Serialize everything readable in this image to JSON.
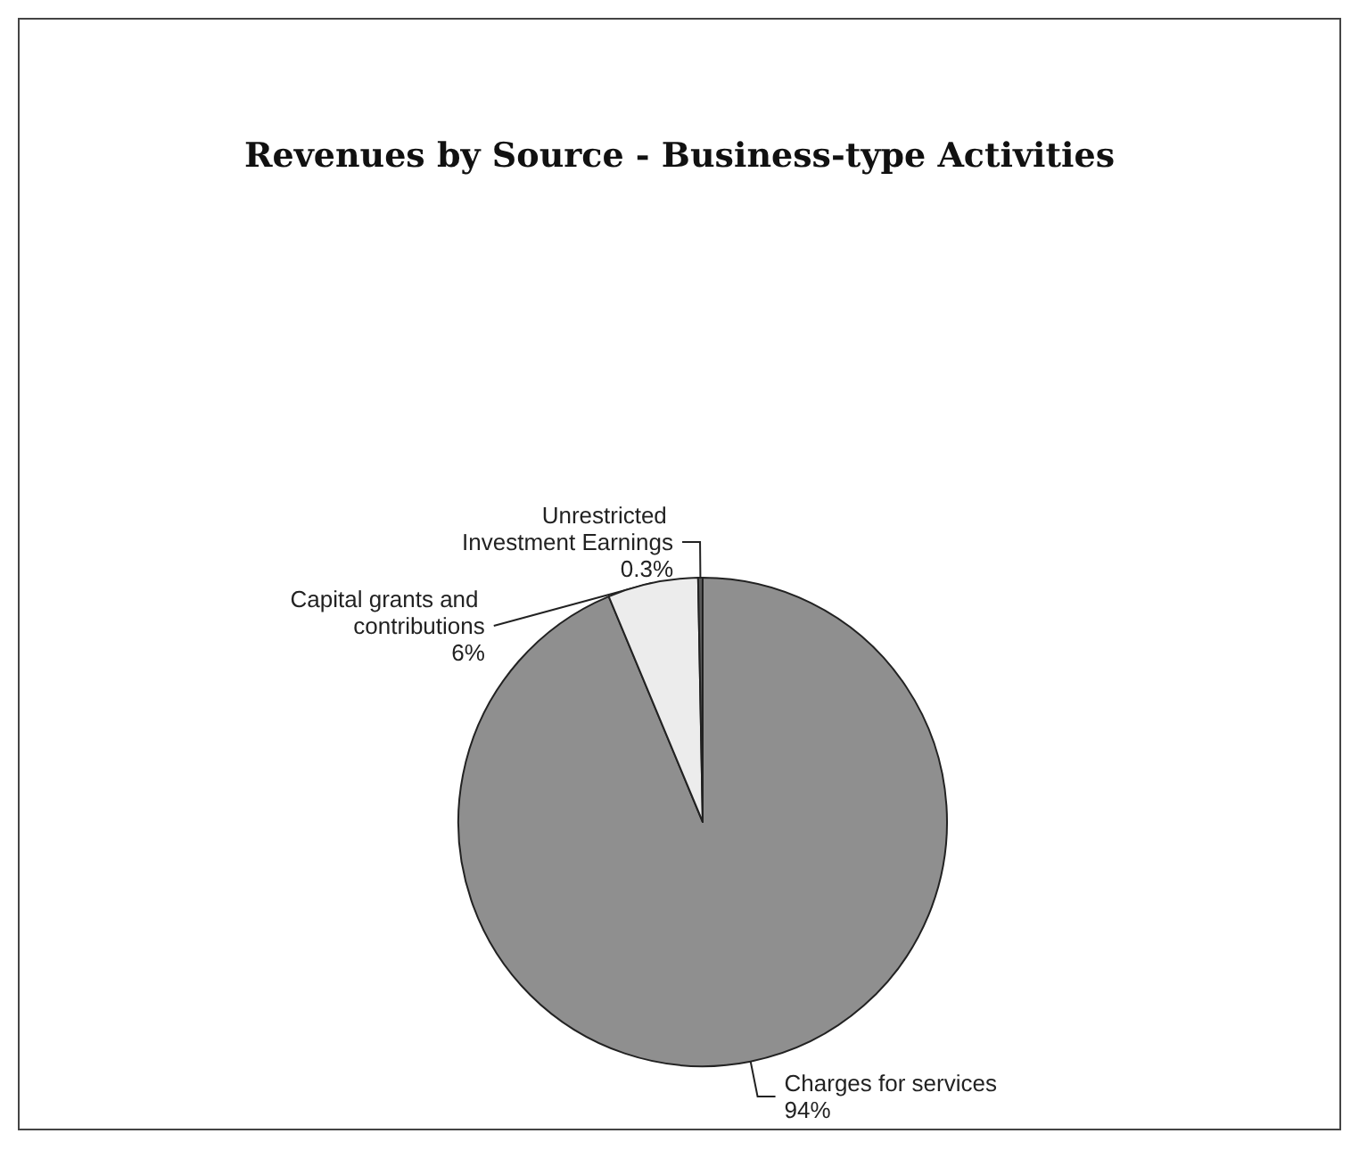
{
  "chart_data": {
    "type": "pie",
    "title": "Revenues by Source - Business-type Activities",
    "categories": [
      "Charges for services",
      "Capital grants and contributions",
      "Unrestricted Investment Earnings"
    ],
    "values": [
      94,
      6,
      0.3
    ],
    "value_labels": [
      "94%",
      "6%",
      "0.3%"
    ],
    "colors": [
      "#8f8f8f",
      "#ececec",
      "#5a5a5a"
    ],
    "legend": false
  }
}
